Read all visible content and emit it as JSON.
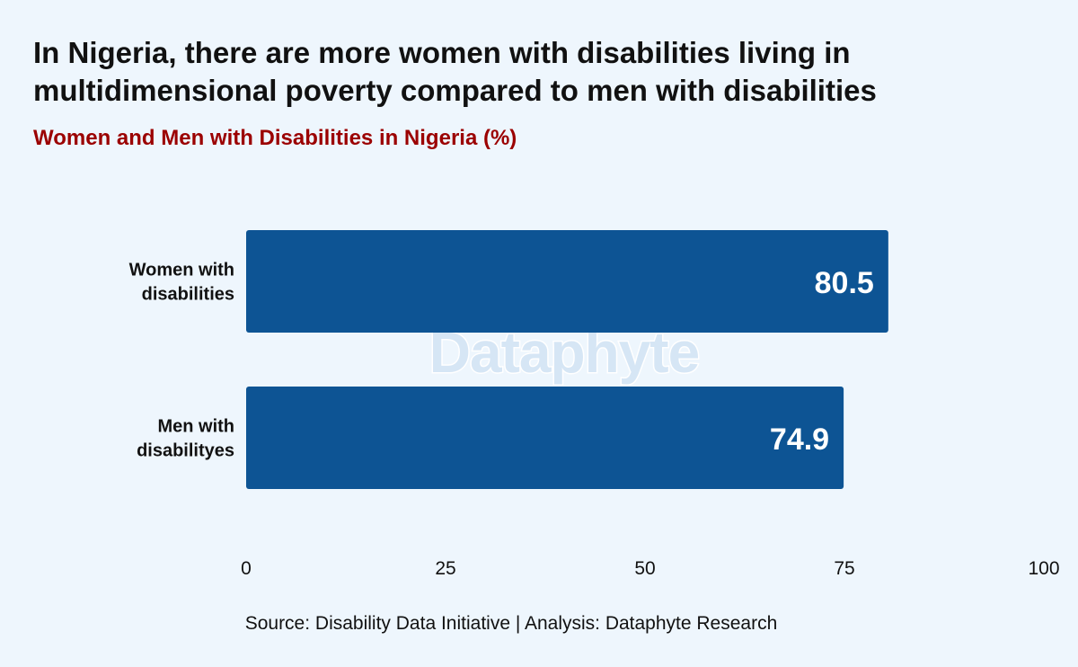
{
  "header": {
    "title_line1": "In Nigeria, there are more women with disabilities living in",
    "title_line2": "multidimensional poverty compared to men with disabilities",
    "subtitle": "Women and Men with Disabilities in Nigeria (%)"
  },
  "watermark": "Dataphyte",
  "footer": {
    "source": "Source: Disability Data Initiative | Analysis: Dataphyte Research"
  },
  "colors": {
    "background": "#eef6fd",
    "bar": "#0d5494",
    "subtitle": "#9b0000",
    "value_label": "#ffffff"
  },
  "chart_data": {
    "type": "bar",
    "orientation": "horizontal",
    "title": "In Nigeria, there are more women with disabilities living in multidimensional poverty compared to men with disabilities",
    "subtitle": "Women and Men with Disabilities in Nigeria (%)",
    "categories": [
      [
        "Women with",
        "disabilities"
      ],
      [
        "Men with",
        "disabilityes"
      ]
    ],
    "values": [
      80.5,
      74.9
    ],
    "xlim": [
      0,
      100
    ],
    "xticks": [
      0,
      25,
      50,
      75,
      100
    ],
    "xlabel": "",
    "ylabel": "",
    "grid": false,
    "legend": "none"
  }
}
